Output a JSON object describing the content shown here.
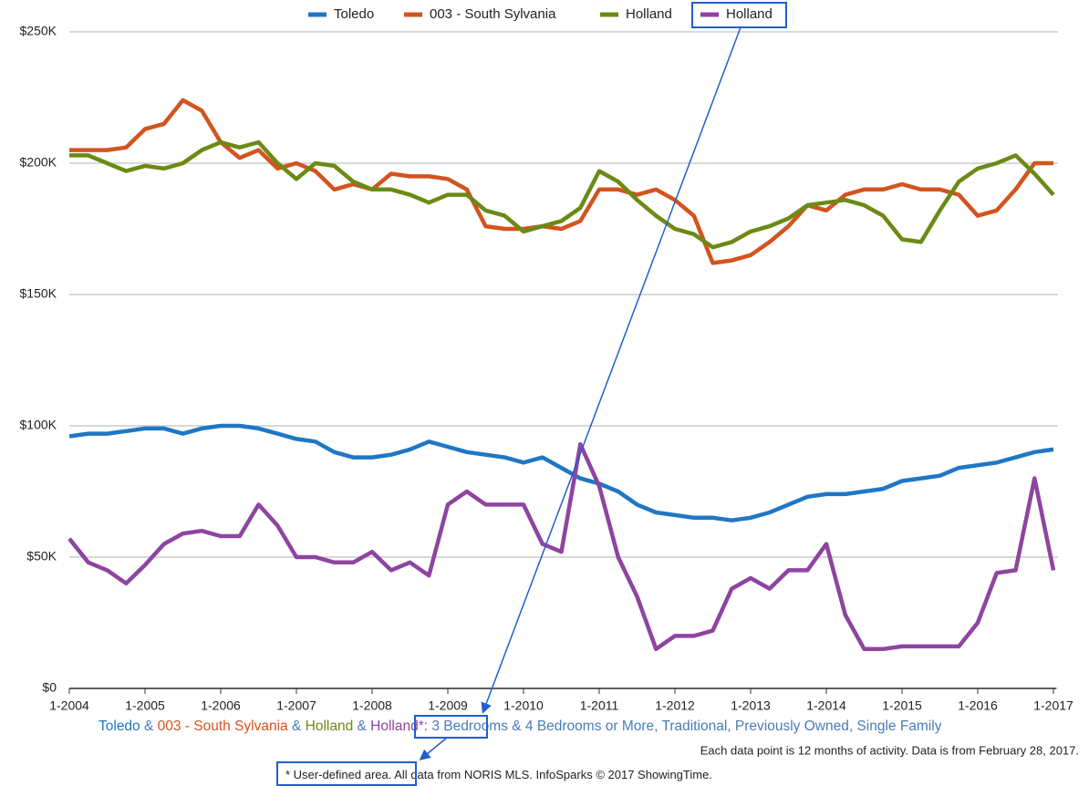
{
  "chart_data": {
    "type": "line",
    "categories": [
      "1-2004",
      null,
      null,
      null,
      "1-2005",
      null,
      null,
      null,
      "1-2006",
      null,
      null,
      null,
      "1-2007",
      null,
      null,
      null,
      "1-2008",
      null,
      null,
      null,
      "1-2009",
      null,
      null,
      null,
      "1-2010",
      null,
      null,
      null,
      "1-2011",
      null,
      null,
      null,
      "1-2012",
      null,
      null,
      null,
      "1-2013",
      null,
      null,
      null,
      "1-2014",
      null,
      null,
      null,
      "1-2015",
      null,
      null,
      null,
      "1-2016",
      null,
      null,
      null,
      "1-2017"
    ],
    "series": [
      {
        "name": "Toledo",
        "color": "#1f77c4",
        "values": [
          96000,
          97000,
          97000,
          98000,
          99000,
          99000,
          97000,
          99000,
          100000,
          100000,
          99000,
          97000,
          95000,
          94000,
          90000,
          88000,
          88000,
          89000,
          91000,
          94000,
          92000,
          90000,
          89000,
          88000,
          86000,
          88000,
          84000,
          80000,
          78000,
          75000,
          70000,
          67000,
          66000,
          65000,
          65000,
          64000,
          65000,
          67000,
          70000,
          73000,
          74000,
          74000,
          75000,
          76000,
          79000,
          80000,
          81000,
          84000,
          85000,
          86000,
          88000,
          90000,
          91000
        ]
      },
      {
        "name": "003 - South Sylvania",
        "color": "#d2541f",
        "values": [
          205000,
          205000,
          205000,
          206000,
          213000,
          215000,
          224000,
          220000,
          208000,
          202000,
          205000,
          198000,
          200000,
          197000,
          190000,
          192000,
          190000,
          196000,
          195000,
          195000,
          194000,
          190000,
          176000,
          175000,
          175000,
          176000,
          175000,
          178000,
          190000,
          190000,
          188000,
          190000,
          186000,
          180000,
          162000,
          163000,
          165000,
          170000,
          176000,
          184000,
          182000,
          188000,
          190000,
          190000,
          192000,
          190000,
          190000,
          188000,
          180000,
          182000,
          190000,
          200000,
          200000
        ]
      },
      {
        "name": "Holland",
        "color": "#6b8a14",
        "values": [
          203000,
          203000,
          200000,
          197000,
          199000,
          198000,
          200000,
          205000,
          208000,
          206000,
          208000,
          200000,
          194000,
          200000,
          199000,
          193000,
          190000,
          190000,
          188000,
          185000,
          188000,
          188000,
          182000,
          180000,
          174000,
          176000,
          178000,
          183000,
          197000,
          193000,
          186000,
          180000,
          175000,
          173000,
          168000,
          170000,
          174000,
          176000,
          179000,
          184000,
          185000,
          186000,
          184000,
          180000,
          171000,
          170000,
          182000,
          193000,
          198000,
          200000,
          203000,
          196000,
          188000
        ]
      },
      {
        "name": "Holland",
        "color": "#8e44a0",
        "values": [
          57000,
          48000,
          45000,
          40000,
          47000,
          55000,
          59000,
          60000,
          58000,
          58000,
          70000,
          62000,
          50000,
          50000,
          48000,
          48000,
          52000,
          45000,
          48000,
          43000,
          70000,
          75000,
          70000,
          70000,
          70000,
          55000,
          52000,
          93000,
          77000,
          50000,
          35000,
          15000,
          20000,
          20000,
          22000,
          38000,
          42000,
          38000,
          45000,
          45000,
          55000,
          28000,
          15000,
          15000,
          16000,
          16000,
          16000,
          16000,
          25000,
          44000,
          45000,
          80000,
          45000
        ]
      }
    ],
    "ylim": [
      0,
      250000
    ],
    "yticks": [
      {
        "value": 0,
        "label": "$0"
      },
      {
        "value": 50000,
        "label": "$50K"
      },
      {
        "value": 100000,
        "label": "$100K"
      },
      {
        "value": 150000,
        "label": "$150K"
      },
      {
        "value": 200000,
        "label": "$200K"
      },
      {
        "value": 250000,
        "label": "$250K"
      }
    ],
    "grid": true,
    "subtitle": [
      "Toledo",
      " & ",
      "003 - South Sylvania",
      " & ",
      "Holland",
      " & ",
      "Holland*:",
      " 3 Bedrooms & 4 Bedrooms or More, Traditional, Previously Owned, Single Family"
    ],
    "subtitle_colors": [
      "#1f77c4",
      "#4a7bb7",
      "#d2541f",
      "#4a7bb7",
      "#6b8a14",
      "#4a7bb7",
      "#8e44a0",
      "#4a7bb7"
    ],
    "note": "Each data point is 12 months of activity. Data is from February 28, 2017.",
    "footnote": [
      "* User-defined area.",
      " All data from NORIS MLS. InfoSparks © 2017 ShowingTime."
    ]
  }
}
